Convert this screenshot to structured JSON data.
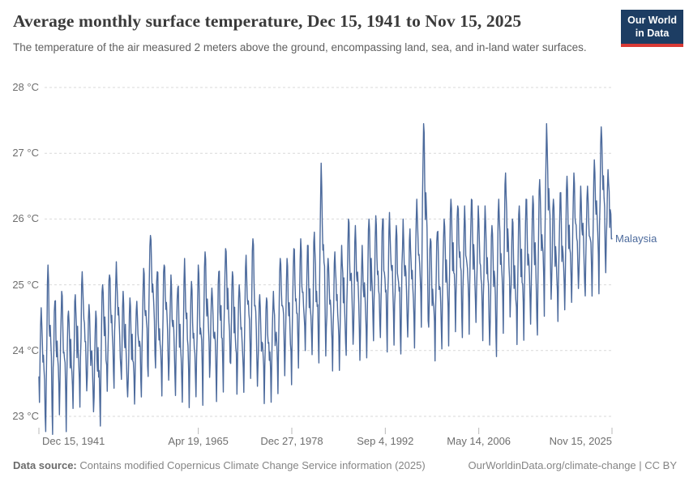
{
  "header": {
    "title": "Average monthly surface temperature, Dec 15, 1941 to Nov 15, 2025",
    "subtitle": "The temperature of the air measured 2 meters above the ground, encompassing land, sea, and in-land water surfaces.",
    "logo": {
      "line1": "Our World",
      "line2": "in Data",
      "bg_color": "#1d3d63",
      "accent_color": "#d93a35"
    }
  },
  "chart_data": {
    "type": "line",
    "title": "Average monthly surface temperature, Dec 15, 1941 to Nov 15, 2025",
    "unit": "°C",
    "ylim": [
      22.6,
      28.2
    ],
    "x_range_years": [
      1941.958,
      2025.875
    ],
    "grid": "dashed-horizontal",
    "legend_position": "end-of-line-label",
    "y_ticks": [
      {
        "value": 28,
        "label": "28 °C"
      },
      {
        "value": 27,
        "label": "27 °C"
      },
      {
        "value": 26,
        "label": "26 °C"
      },
      {
        "value": 25,
        "label": "25 °C"
      },
      {
        "value": 24,
        "label": "24 °C"
      },
      {
        "value": 23,
        "label": "23 °C"
      }
    ],
    "x_ticks": [
      {
        "label": "Dec 15, 1941",
        "t": 1941.958,
        "align": "left"
      },
      {
        "label": "Apr 19, 1965",
        "t": 1965.3,
        "align": "center"
      },
      {
        "label": "Dec 27, 1978",
        "t": 1978.99,
        "align": "center"
      },
      {
        "label": "Sep 4, 1992",
        "t": 1992.68,
        "align": "center"
      },
      {
        "label": "May 14, 2006",
        "t": 2006.37,
        "align": "center"
      },
      {
        "label": "Nov 15, 2025",
        "t": 2025.875,
        "align": "right"
      }
    ],
    "series": [
      {
        "name": "Malaysia",
        "color": "#4c6a9c",
        "start_value_c": 23.6,
        "end_value_c": 25.7,
        "seasonal_pattern": [
          0.3,
          0.55,
          0.85,
          1.0,
          0.92,
          0.68,
          0.52,
          0.62,
          0.5,
          0.42,
          0.22,
          0.0
        ],
        "yearly_min_max": [
          [
            1942,
            22.75,
            24.65
          ],
          [
            1943,
            22.7,
            25.3
          ],
          [
            1944,
            23.1,
            24.75
          ],
          [
            1945,
            22.85,
            24.9
          ],
          [
            1946,
            23.1,
            24.6
          ],
          [
            1947,
            23.15,
            24.85
          ],
          [
            1948,
            23.35,
            25.2
          ],
          [
            1949,
            23.0,
            24.7
          ],
          [
            1950,
            22.8,
            24.6
          ],
          [
            1951,
            23.3,
            25.0
          ],
          [
            1952,
            23.45,
            25.15
          ],
          [
            1953,
            23.65,
            25.35
          ],
          [
            1954,
            23.2,
            24.9
          ],
          [
            1955,
            23.1,
            24.8
          ],
          [
            1956,
            23.3,
            24.75
          ],
          [
            1957,
            23.55,
            25.25
          ],
          [
            1958,
            23.9,
            25.75
          ],
          [
            1959,
            23.3,
            25.2
          ],
          [
            1960,
            23.55,
            25.3
          ],
          [
            1961,
            23.3,
            25.15
          ],
          [
            1962,
            23.3,
            24.95
          ],
          [
            1963,
            23.15,
            25.4
          ],
          [
            1964,
            23.3,
            25.05
          ],
          [
            1965,
            23.15,
            25.3
          ],
          [
            1966,
            23.65,
            25.5
          ],
          [
            1967,
            23.3,
            24.95
          ],
          [
            1968,
            23.45,
            25.2
          ],
          [
            1969,
            23.8,
            25.55
          ],
          [
            1970,
            23.4,
            25.2
          ],
          [
            1971,
            23.4,
            25.0
          ],
          [
            1972,
            23.55,
            25.45
          ],
          [
            1973,
            23.4,
            25.7
          ],
          [
            1974,
            23.25,
            24.85
          ],
          [
            1975,
            23.2,
            24.8
          ],
          [
            1976,
            23.35,
            24.9
          ],
          [
            1977,
            23.65,
            25.4
          ],
          [
            1978,
            23.4,
            25.4
          ],
          [
            1979,
            23.8,
            25.55
          ],
          [
            1980,
            23.9,
            25.7
          ],
          [
            1981,
            23.85,
            25.6
          ],
          [
            1982,
            23.8,
            25.8
          ],
          [
            1983,
            23.95,
            26.85
          ],
          [
            1984,
            23.7,
            25.4
          ],
          [
            1985,
            23.7,
            25.5
          ],
          [
            1986,
            23.85,
            25.6
          ],
          [
            1987,
            24.05,
            26.0
          ],
          [
            1988,
            23.8,
            25.9
          ],
          [
            1989,
            23.85,
            25.6
          ],
          [
            1990,
            24.05,
            26.0
          ],
          [
            1991,
            24.1,
            26.05
          ],
          [
            1992,
            24.0,
            26.0
          ],
          [
            1993,
            24.15,
            26.1
          ],
          [
            1994,
            24.0,
            25.9
          ],
          [
            1995,
            24.15,
            26.0
          ],
          [
            1996,
            24.0,
            25.85
          ],
          [
            1997,
            24.3,
            26.3
          ],
          [
            1998,
            24.55,
            27.45
          ],
          [
            1999,
            23.9,
            25.7
          ],
          [
            2000,
            24.0,
            25.8
          ],
          [
            2001,
            24.15,
            26.0
          ],
          [
            2002,
            24.35,
            26.3
          ],
          [
            2003,
            24.25,
            26.2
          ],
          [
            2004,
            24.2,
            26.2
          ],
          [
            2005,
            24.35,
            26.3
          ],
          [
            2006,
            24.25,
            26.2
          ],
          [
            2007,
            24.15,
            26.2
          ],
          [
            2008,
            24.0,
            25.9
          ],
          [
            2009,
            24.3,
            26.3
          ],
          [
            2010,
            24.45,
            26.7
          ],
          [
            2011,
            24.1,
            26.0
          ],
          [
            2012,
            24.2,
            26.2
          ],
          [
            2013,
            24.35,
            26.3
          ],
          [
            2014,
            24.15,
            26.35
          ],
          [
            2015,
            24.5,
            26.6
          ],
          [
            2016,
            24.8,
            27.45
          ],
          [
            2017,
            24.5,
            26.3
          ],
          [
            2018,
            24.55,
            26.4
          ],
          [
            2019,
            24.7,
            26.65
          ],
          [
            2020,
            24.85,
            26.7
          ],
          [
            2021,
            24.75,
            26.5
          ],
          [
            2022,
            24.8,
            26.5
          ],
          [
            2023,
            24.9,
            26.9
          ],
          [
            2024,
            25.15,
            27.4
          ],
          [
            2025,
            25.2,
            26.75
          ]
        ],
        "notable_peaks": [
          {
            "t": 1983.3,
            "value_c": 26.85
          },
          {
            "t": 1998.3,
            "value_c": 27.45
          },
          {
            "t": 2016.3,
            "value_c": 27.45
          },
          {
            "t": 2024.3,
            "value_c": 27.4
          }
        ]
      }
    ]
  },
  "annotations": {
    "series_label": "Malaysia"
  },
  "footer": {
    "source_label": "Data source:",
    "source_text": " Contains modified Copernicus Climate Change Service information (2025)",
    "link_text": "OurWorldinData.org/climate-change | CC BY"
  }
}
